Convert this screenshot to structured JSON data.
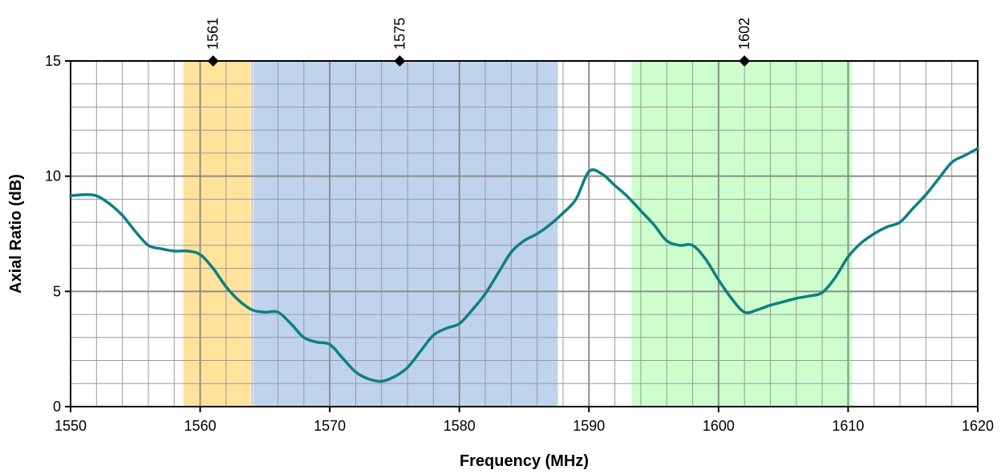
{
  "chart_data": {
    "type": "line",
    "xlabel": "Frequency (MHz)",
    "ylabel": "Axial Ratio (dB)",
    "xlim": [
      1550,
      1620
    ],
    "ylim": [
      0,
      15
    ],
    "x_ticks": [
      1550,
      1560,
      1570,
      1580,
      1590,
      1600,
      1610,
      1620
    ],
    "y_ticks": [
      0,
      5,
      10,
      15
    ],
    "x_minor_step": 2,
    "y_minor_step": 1,
    "grid": true,
    "line_color": "#0E7F82",
    "bands": [
      {
        "from": 1558.7,
        "to": 1563.9,
        "color": "#FFE39B"
      },
      {
        "from": 1564.1,
        "to": 1587.6,
        "color": "#BFD3EC"
      },
      {
        "from": 1593.3,
        "to": 1610.3,
        "color": "#CCFFCC"
      }
    ],
    "markers": [
      {
        "x": 1561,
        "y": 15,
        "label": "1561"
      },
      {
        "x": 1575.4,
        "y": 15,
        "label": "1575"
      },
      {
        "x": 1602,
        "y": 15,
        "label": "1602"
      }
    ],
    "series": [
      {
        "x": [
          1550,
          1551,
          1552,
          1553,
          1554,
          1555,
          1556,
          1557,
          1558,
          1559,
          1560,
          1561,
          1562,
          1563,
          1564,
          1565,
          1566,
          1567,
          1568,
          1569,
          1570,
          1571,
          1572,
          1573,
          1574,
          1575,
          1576,
          1577,
          1578,
          1579,
          1580,
          1581,
          1582,
          1583,
          1584,
          1585,
          1586,
          1587,
          1588,
          1589,
          1590,
          1591,
          1592,
          1593,
          1594,
          1595,
          1596,
          1597,
          1598,
          1599,
          1600,
          1601,
          1602,
          1603,
          1604,
          1605,
          1606,
          1607,
          1608,
          1609,
          1610,
          1611,
          1612,
          1613,
          1614,
          1615,
          1616,
          1617,
          1618,
          1619,
          1620
        ],
        "values": [
          9.15,
          9.2,
          9.15,
          8.8,
          8.3,
          7.6,
          7.0,
          6.85,
          6.75,
          6.75,
          6.6,
          6.0,
          5.2,
          4.6,
          4.2,
          4.1,
          4.1,
          3.6,
          3.0,
          2.8,
          2.7,
          2.1,
          1.5,
          1.2,
          1.1,
          1.3,
          1.7,
          2.4,
          3.1,
          3.4,
          3.6,
          4.2,
          4.9,
          5.8,
          6.7,
          7.2,
          7.5,
          7.9,
          8.4,
          9.0,
          10.2,
          10.1,
          9.6,
          9.1,
          8.5,
          7.9,
          7.2,
          7.0,
          7.0,
          6.4,
          5.5,
          4.7,
          4.1,
          4.2,
          4.4,
          4.55,
          4.7,
          4.8,
          4.95,
          5.6,
          6.5,
          7.1,
          7.5,
          7.8,
          8.0,
          8.6,
          9.2,
          9.9,
          10.6,
          10.9,
          11.2
        ]
      }
    ]
  }
}
